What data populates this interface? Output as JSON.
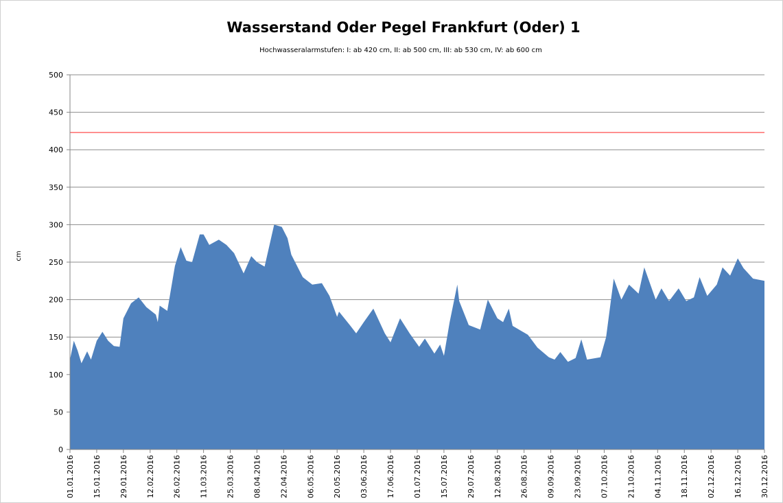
{
  "chart_data": {
    "type": "area",
    "title": "Wasserstand Oder Pegel Frankfurt (Oder) 1",
    "subtitle": "Hochwasseralarmstufen: I: ab 420 cm, II: ab 500 cm, III: ab 530 cm,  IV: ab 600 cm",
    "ylabel": "cm",
    "color": "#4f81bd",
    "x": [
      "01.01.2016",
      "03.01.2016",
      "05.01.2016",
      "07.01.2016",
      "10.01.2016",
      "12.01.2016",
      "15.01.2016",
      "18.01.2016",
      "21.01.2016",
      "24.01.2016",
      "27.01.2016",
      "29.01.2016",
      "02.02.2016",
      "06.02.2016",
      "10.02.2016",
      "15.02.2016",
      "16.02.2016",
      "17.02.2016",
      "21.02.2016",
      "25.02.2016",
      "28.02.2016",
      "02.03.2016",
      "05.03.2016",
      "09.03.2016",
      "11.03.2016",
      "14.03.2016",
      "19.03.2016",
      "23.03.2016",
      "27.03.2016",
      "01.04.2016",
      "05.04.2016",
      "08.04.2016",
      "12.04.2016",
      "17.04.2016",
      "21.04.2016",
      "24.04.2016",
      "26.04.2016",
      "02.05.2016",
      "07.05.2016",
      "12.05.2016",
      "16.05.2016",
      "20.05.2016",
      "21.05.2016",
      "27.05.2016",
      "30.05.2016",
      "03.06.2016",
      "08.06.2016",
      "14.06.2016",
      "17.06.2016",
      "22.06.2016",
      "27.06.2016",
      "02.07.2016",
      "05.07.2016",
      "10.07.2016",
      "13.07.2016",
      "15.07.2016",
      "18.07.2016",
      "22.07.2016",
      "23.07.2016",
      "28.07.2016",
      "03.08.2016",
      "07.08.2016",
      "12.08.2016",
      "15.08.2016",
      "18.08.2016",
      "20.08.2016",
      "28.08.2016",
      "02.09.2016",
      "08.09.2016",
      "11.09.2016",
      "14.09.2016",
      "18.09.2016",
      "22.09.2016",
      "25.09.2016",
      "28.09.2016",
      "05.10.2016",
      "08.10.2016",
      "12.10.2016",
      "16.10.2016",
      "20.10.2016",
      "25.10.2016",
      "28.10.2016",
      "03.11.2016",
      "06.11.2016",
      "10.11.2016",
      "15.11.2016",
      "19.11.2016",
      "23.11.2016",
      "26.11.2016",
      "30.11.2016",
      "05.12.2016",
      "08.12.2016",
      "12.12.2016",
      "16.12.2016",
      "19.12.2016",
      "24.12.2016",
      "30.12.2016"
    ],
    "values": [
      120,
      145,
      132,
      115,
      131,
      120,
      145,
      157,
      145,
      138,
      137,
      175,
      195,
      203,
      190,
      180,
      170,
      192,
      185,
      245,
      270,
      252,
      250,
      287,
      287,
      273,
      280,
      273,
      262,
      235,
      258,
      250,
      244,
      300,
      297,
      282,
      260,
      230,
      220,
      222,
      205,
      177,
      184,
      165,
      155,
      170,
      188,
      155,
      143,
      175,
      155,
      137,
      148,
      128,
      140,
      125,
      170,
      220,
      198,
      166,
      160,
      200,
      175,
      170,
      188,
      165,
      153,
      136,
      123,
      120,
      130,
      117,
      122,
      147,
      120,
      123,
      150,
      228,
      200,
      220,
      208,
      243,
      200,
      215,
      198,
      215,
      198,
      203,
      230,
      205,
      220,
      243,
      232,
      255,
      242,
      228,
      225
    ],
    "xlim": [
      "01.01.2016",
      "30.12.2016"
    ],
    "xticks": [
      "01.01.2016",
      "15.01.2016",
      "29.01.2016",
      "12.02.2016",
      "26.02.2016",
      "11.03.2016",
      "25.03.2016",
      "08.04.2016",
      "22.04.2016",
      "06.05.2016",
      "20.05.2016",
      "03.06.2016",
      "17.06.2016",
      "01.07.2016",
      "15.07.2016",
      "29.07.2016",
      "12.08.2016",
      "26.08.2016",
      "09.09.2016",
      "23.09.2016",
      "07.10.2016",
      "21.10.2016",
      "04.11.2016",
      "18.11.2016",
      "02.12.2016",
      "16.12.2016",
      "30.12.2016"
    ],
    "ylim": [
      0,
      500
    ],
    "yticks": [
      0,
      50,
      100,
      150,
      200,
      250,
      300,
      350,
      400,
      450,
      500
    ],
    "grid": true,
    "reference_line": {
      "value": 423,
      "color": "#ff0000"
    }
  }
}
